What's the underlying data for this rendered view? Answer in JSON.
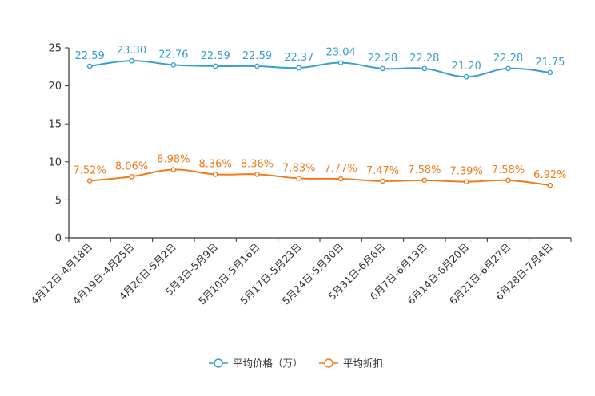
{
  "chart_data": {
    "type": "line",
    "title": "",
    "xlabel": "",
    "ylabel": "",
    "ylim": [
      0,
      25
    ],
    "yticks": [
      0,
      5,
      10,
      15,
      20,
      25
    ],
    "grid": false,
    "legend_position": "bottom",
    "categories": [
      "4月12日-4月18日",
      "4月19日-4月25日",
      "4月26日-5月2日",
      "5月3日-5月9日",
      "5月10日-5月16日",
      "5月17日-5月23日",
      "5月24日-5月30日",
      "5月31日-6月6日",
      "6月7日-6月13日",
      "6月14日-6月20日",
      "6月21日-6月27日",
      "6月28日-7月4日"
    ],
    "series": [
      {
        "name": "平均价格（万）",
        "color": "#3b9ed0",
        "values": [
          22.59,
          23.3,
          22.76,
          22.59,
          22.59,
          22.37,
          23.04,
          22.28,
          22.28,
          21.2,
          22.28,
          21.75
        ],
        "labels": [
          "22.59",
          "23.30",
          "22.76",
          "22.59",
          "22.59",
          "22.37",
          "23.04",
          "22.28",
          "22.28",
          "21.20",
          "22.28",
          "21.75"
        ]
      },
      {
        "name": "平均折扣",
        "color": "#f07c1e",
        "values": [
          7.52,
          8.06,
          8.98,
          8.36,
          8.36,
          7.83,
          7.77,
          7.47,
          7.58,
          7.39,
          7.58,
          6.92
        ],
        "labels": [
          "7.52%",
          "8.06%",
          "8.98%",
          "8.36%",
          "8.36%",
          "7.83%",
          "7.77%",
          "7.47%",
          "7.58%",
          "7.39%",
          "7.58%",
          "6.92%"
        ]
      }
    ]
  }
}
